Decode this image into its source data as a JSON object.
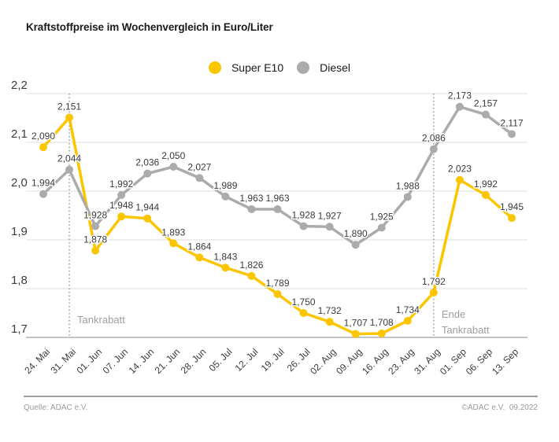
{
  "title": "Kraftstoffpreise im Wochenvergleich in Euro/Liter",
  "legend": {
    "items": [
      {
        "label": "Super E10",
        "color": "#fbc500"
      },
      {
        "label": "Diesel",
        "color": "#ababab"
      }
    ]
  },
  "footer": {
    "source": "Quelle: ADAC e.V.",
    "copyright": "©ADAC e.V.  09.2022"
  },
  "chart_data": {
    "type": "line",
    "title": "Kraftstoffpreise im Wochenvergleich in Euro/Liter",
    "categories": [
      "24. Mai",
      "31. Mai",
      "01. Jun",
      "07. Jun",
      "14. Jun",
      "21. Jun",
      "28. Jun",
      "05. Jul",
      "12. Jul",
      "19. Jul",
      "26. Jul",
      "02. Aug",
      "09. Aug",
      "16. Aug",
      "23. Aug",
      "31. Aug",
      "01. Sep",
      "06. Sep",
      "13. Sep"
    ],
    "series": [
      {
        "name": "Super E10",
        "color": "#fbc500",
        "values": [
          2.09,
          2.151,
          1.878,
          1.948,
          1.944,
          1.893,
          1.864,
          1.843,
          1.826,
          1.789,
          1.75,
          1.732,
          1.707,
          1.708,
          1.734,
          1.792,
          2.023,
          1.992,
          1.945
        ],
        "value_labels": [
          "2,090",
          "2,151",
          "1,878",
          "1,948",
          "1,944",
          "1,893",
          "1,864",
          "1,843",
          "1,826",
          "1,789",
          "1,750",
          "1,732",
          "1,707",
          "1,708",
          "1,734",
          "1,792",
          "2,023",
          "1,992",
          "1,945"
        ]
      },
      {
        "name": "Diesel",
        "color": "#ababab",
        "values": [
          1.994,
          2.044,
          1.928,
          1.992,
          2.036,
          2.05,
          2.027,
          1.989,
          1.963,
          1.963,
          1.928,
          1.927,
          1.89,
          1.925,
          1.988,
          2.086,
          2.173,
          2.157,
          2.117
        ],
        "value_labels": [
          "1,994",
          "2,044",
          "1,928",
          "1,992",
          "2,036",
          "2,050",
          "2,027",
          "1,989",
          "1,963",
          "1,963",
          "1,928",
          "1,927",
          "1,890",
          "1,925",
          "1,988",
          "2,086",
          "2,173",
          "2,157",
          "2,117"
        ]
      }
    ],
    "xlabel": "",
    "ylabel": "Euro/Liter",
    "ylim": [
      1.7,
      2.2
    ],
    "yticks": [
      1.7,
      1.8,
      1.9,
      2.0,
      2.1,
      2.2
    ],
    "ytick_labels": [
      "1,7",
      "1,8",
      "1,9",
      "2,0",
      "2,1",
      "2,2"
    ],
    "grid": true,
    "legend_position": "top-center",
    "annotations": [
      {
        "x_index": 1,
        "lines": [
          "Tankrabatt"
        ],
        "style": "dotted-vline"
      },
      {
        "x_index": 15,
        "lines": [
          "Ende",
          "Tankrabatt"
        ],
        "style": "dotted-vline"
      }
    ]
  }
}
